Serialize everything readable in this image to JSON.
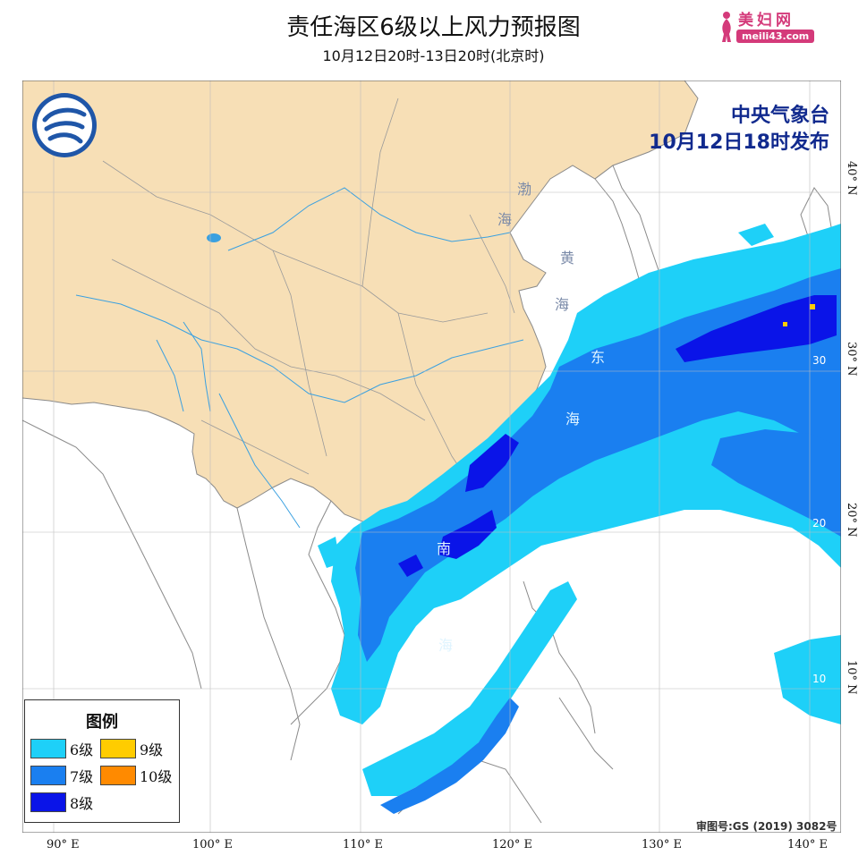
{
  "header": {
    "title": "责任海区6级以上风力预报图",
    "subtitle": "10月12日20时-13日20时(北京时)"
  },
  "watermark": {
    "name": "美妇网",
    "url": "meili43.com"
  },
  "issuer": {
    "org": "中央气象台",
    "issued": "10月12日18时发布"
  },
  "legend": {
    "title": "图例",
    "items": [
      {
        "label": "6级",
        "color": "#1ed0f8"
      },
      {
        "label": "9级",
        "color": "#ffcc00"
      },
      {
        "label": "7级",
        "color": "#1a7ff0"
      },
      {
        "label": "10级",
        "color": "#ff8a00"
      },
      {
        "label": "8级",
        "color": "#0a14e8"
      }
    ]
  },
  "seas": {
    "bohai_1": "渤",
    "bohai_2": "海",
    "yellow_1": "黄",
    "yellow_2": "海",
    "east_1": "东",
    "east_2": "海",
    "south_1": "南",
    "south_2": "海"
  },
  "grid": {
    "longitudes": [
      "90° E",
      "100° E",
      "110° E",
      "120° E",
      "130° E",
      "140° E"
    ],
    "latitudes": [
      "40° N",
      "30° N",
      "20° N",
      "10° N"
    ],
    "inner_labels": [
      "30",
      "20",
      "10"
    ]
  },
  "approval": "审图号:GS (2019) 3082号",
  "colors": {
    "land": "#f7dfb6",
    "border": "#8a8a8a",
    "river": "#3aa0e0",
    "sea": "#ffffff"
  }
}
